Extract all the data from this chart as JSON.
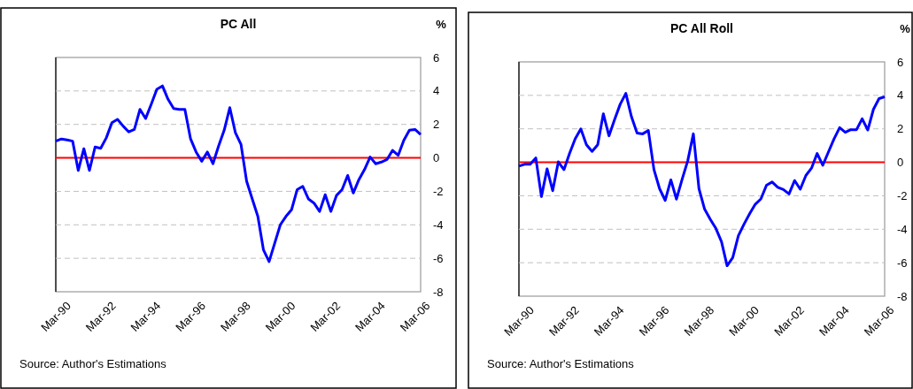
{
  "chart_data": [
    {
      "type": "line",
      "title": "PC All",
      "ylabel": "%",
      "categories": [
        "Mar-90",
        null,
        null,
        null,
        null,
        null,
        null,
        null,
        "Mar-92",
        null,
        null,
        null,
        null,
        null,
        null,
        null,
        "Mar-94",
        null,
        null,
        null,
        null,
        null,
        null,
        null,
        "Mar-96",
        null,
        null,
        null,
        null,
        null,
        null,
        null,
        "Mar-98",
        null,
        null,
        null,
        null,
        null,
        null,
        null,
        "Mar-00",
        null,
        null,
        null,
        null,
        null,
        null,
        null,
        "Mar-02",
        null,
        null,
        null,
        null,
        null,
        null,
        null,
        "Mar-04",
        null,
        null,
        null,
        null,
        null,
        null,
        null,
        "Mar-06",
        null
      ],
      "series": [
        {
          "color": "#0000ff",
          "values": [
            1.0,
            1.13,
            1.07,
            1.0,
            -0.75,
            0.55,
            -0.75,
            0.65,
            0.57,
            1.2,
            2.1,
            2.3,
            1.9,
            1.55,
            1.7,
            2.9,
            2.35,
            3.2,
            4.1,
            4.3,
            3.5,
            2.95,
            2.9,
            2.9,
            1.15,
            0.35,
            -0.2,
            0.35,
            -0.35,
            0.7,
            1.65,
            3.0,
            1.5,
            0.8,
            -1.4,
            -2.45,
            -3.5,
            -5.5,
            -6.2,
            -5.1,
            -4.0,
            -3.5,
            -3.1,
            -1.9,
            -1.7,
            -2.45,
            -2.7,
            -3.2,
            -2.2,
            -3.2,
            -2.25,
            -1.9,
            -1.05,
            -2.1,
            -1.3,
            -0.7,
            0.05,
            -0.35,
            -0.25,
            -0.1,
            0.45,
            0.15,
            1.05,
            1.65,
            1.7,
            1.4
          ]
        }
      ],
      "ylim": [
        -8,
        6
      ],
      "yticks": [
        -8,
        -6,
        -4,
        -2,
        0,
        2,
        4,
        6
      ],
      "grid": "y",
      "ref_lines": [
        {
          "axis": "y",
          "value": 0,
          "color": "#ff0000"
        }
      ],
      "annotations": [
        "Source: Author's Estimations"
      ]
    },
    {
      "type": "line",
      "title": "PC All Roll",
      "ylabel": "%",
      "categories": [
        "Mar-90",
        null,
        null,
        null,
        null,
        null,
        null,
        null,
        "Mar-92",
        null,
        null,
        null,
        null,
        null,
        null,
        null,
        "Mar-94",
        null,
        null,
        null,
        null,
        null,
        null,
        null,
        "Mar-96",
        null,
        null,
        null,
        null,
        null,
        null,
        null,
        "Mar-98",
        null,
        null,
        null,
        null,
        null,
        null,
        null,
        "Mar-00",
        null,
        null,
        null,
        null,
        null,
        null,
        null,
        "Mar-02",
        null,
        null,
        null,
        null,
        null,
        null,
        null,
        "Mar-04",
        null,
        null,
        null,
        null,
        null,
        null,
        null,
        "Mar-06",
        null
      ],
      "series": [
        {
          "color": "#0000ff",
          "values": [
            -0.23,
            -0.12,
            -0.12,
            0.26,
            -2.05,
            -0.39,
            -1.7,
            0.03,
            -0.44,
            0.53,
            1.4,
            2.0,
            1.05,
            0.65,
            1.05,
            2.9,
            1.58,
            2.55,
            3.47,
            4.12,
            2.72,
            1.75,
            1.7,
            1.9,
            -0.44,
            -1.58,
            -2.28,
            -1.05,
            -2.2,
            -1.02,
            0.09,
            1.7,
            -1.58,
            -2.8,
            -3.4,
            -3.95,
            -4.74,
            -6.18,
            -5.7,
            -4.39,
            -3.7,
            -3.07,
            -2.51,
            -2.19,
            -1.37,
            -1.18,
            -1.49,
            -1.63,
            -1.89,
            -1.09,
            -1.61,
            -0.79,
            -0.35,
            0.53,
            -0.18,
            0.61,
            1.4,
            2.07,
            1.79,
            1.95,
            1.95,
            2.6,
            1.93,
            3.16,
            3.81,
            3.91
          ]
        }
      ],
      "ylim": [
        -8,
        6
      ],
      "yticks": [
        -8,
        -6,
        -4,
        -2,
        0,
        2,
        4,
        6
      ],
      "grid": "y",
      "ref_lines": [
        {
          "axis": "y",
          "value": 0,
          "color": "#ff0000"
        }
      ],
      "annotations": [
        "Source: Author's Estimations"
      ]
    }
  ]
}
